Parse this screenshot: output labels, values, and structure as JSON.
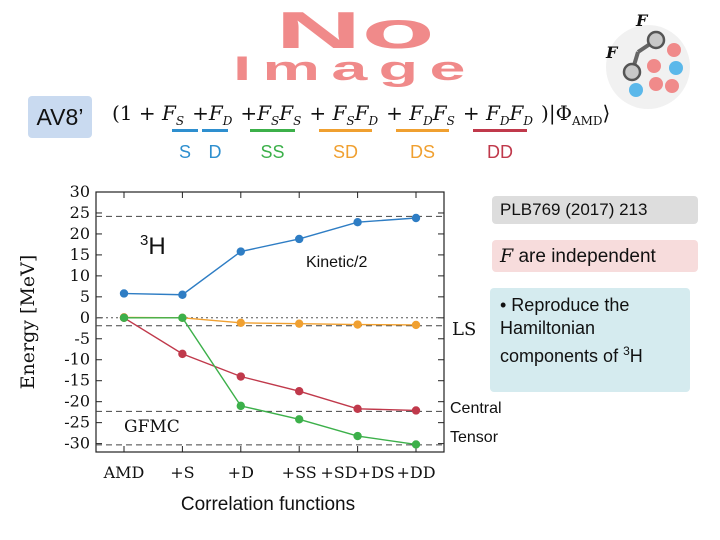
{
  "banner": {
    "line1": "No",
    "line2": "Image"
  },
  "molecule": {
    "label_top": "F",
    "label_left": "F"
  },
  "tag": "AV8’",
  "formula": {
    "prefix": "(1 + ",
    "terms": [
      {
        "text": "F",
        "sub": "S",
        "label": "S",
        "color": "#2e8fcf"
      },
      {
        "text": "+F",
        "sub": "D",
        "label": "D",
        "color": "#2e8fcf"
      },
      {
        "text": "+F",
        "sub": "S",
        "text2": "F",
        "sub2": "S",
        "label": "SS",
        "color": "#3cb04a"
      },
      {
        "text": "+ F",
        "sub": "S",
        "text2": "F",
        "sub2": "D",
        "label": "SD",
        "color": "#f0a030"
      },
      {
        "text": "+ F",
        "sub": "D",
        "text2": "F",
        "sub2": "S",
        "label": "DS",
        "color": "#f0a030"
      },
      {
        "text": "+ F",
        "sub": "D",
        "text2": "F",
        "sub2": "D",
        "label": "DD",
        "color": "#c0394b"
      }
    ],
    "suffix": ")|Φ",
    "suffix_sub": "AMD",
    "suffix_end": "⟩"
  },
  "reference": "PLB769 (2017) 213",
  "independent": {
    "symbol": "F",
    "text": " are independent"
  },
  "bullet": {
    "text": "• Reproduce the Hamiltonian components of ",
    "sup": "3",
    "tail": "H"
  },
  "chart_data": {
    "type": "line",
    "categories": [
      "AMD",
      "+S",
      "+D",
      "+SS",
      "+SD+DS",
      "+DD"
    ],
    "ylabel": "Energy [MeV]",
    "xlabel": "Correlation functions",
    "ylim": [
      -32,
      30
    ],
    "yticks": [
      30,
      25,
      20,
      15,
      10,
      5,
      0,
      -5,
      -10,
      -15,
      -20,
      -25,
      -30
    ],
    "nucleus": {
      "sup": "3",
      "base": "H"
    },
    "series": [
      {
        "name": "Kinetic/2",
        "color": "#2e7dc4",
        "values": [
          5.8,
          5.5,
          15.8,
          18.8,
          22.8,
          23.8
        ]
      },
      {
        "name": "LS",
        "color": "#f0a030",
        "values": [
          0.1,
          0.0,
          -1.2,
          -1.4,
          -1.6,
          -1.7
        ]
      },
      {
        "name": "Central",
        "color": "#c0394b",
        "values": [
          0.0,
          -8.6,
          -14.0,
          -17.5,
          -21.7,
          -22.1
        ]
      },
      {
        "name": "Tensor",
        "color": "#3cb04a",
        "values": [
          0.0,
          0.0,
          -21.0,
          -24.2,
          -28.2,
          -30.2
        ]
      }
    ],
    "reference_lines": [
      {
        "value": 24.2,
        "style": "dashed"
      },
      {
        "value": 0,
        "style": "dotted"
      },
      {
        "value": -1.9,
        "style": "dashed"
      },
      {
        "value": -22.3,
        "style": "dashed"
      },
      {
        "value": -30.3,
        "style": "dashed"
      }
    ],
    "gfmc_label": "GFMC"
  }
}
